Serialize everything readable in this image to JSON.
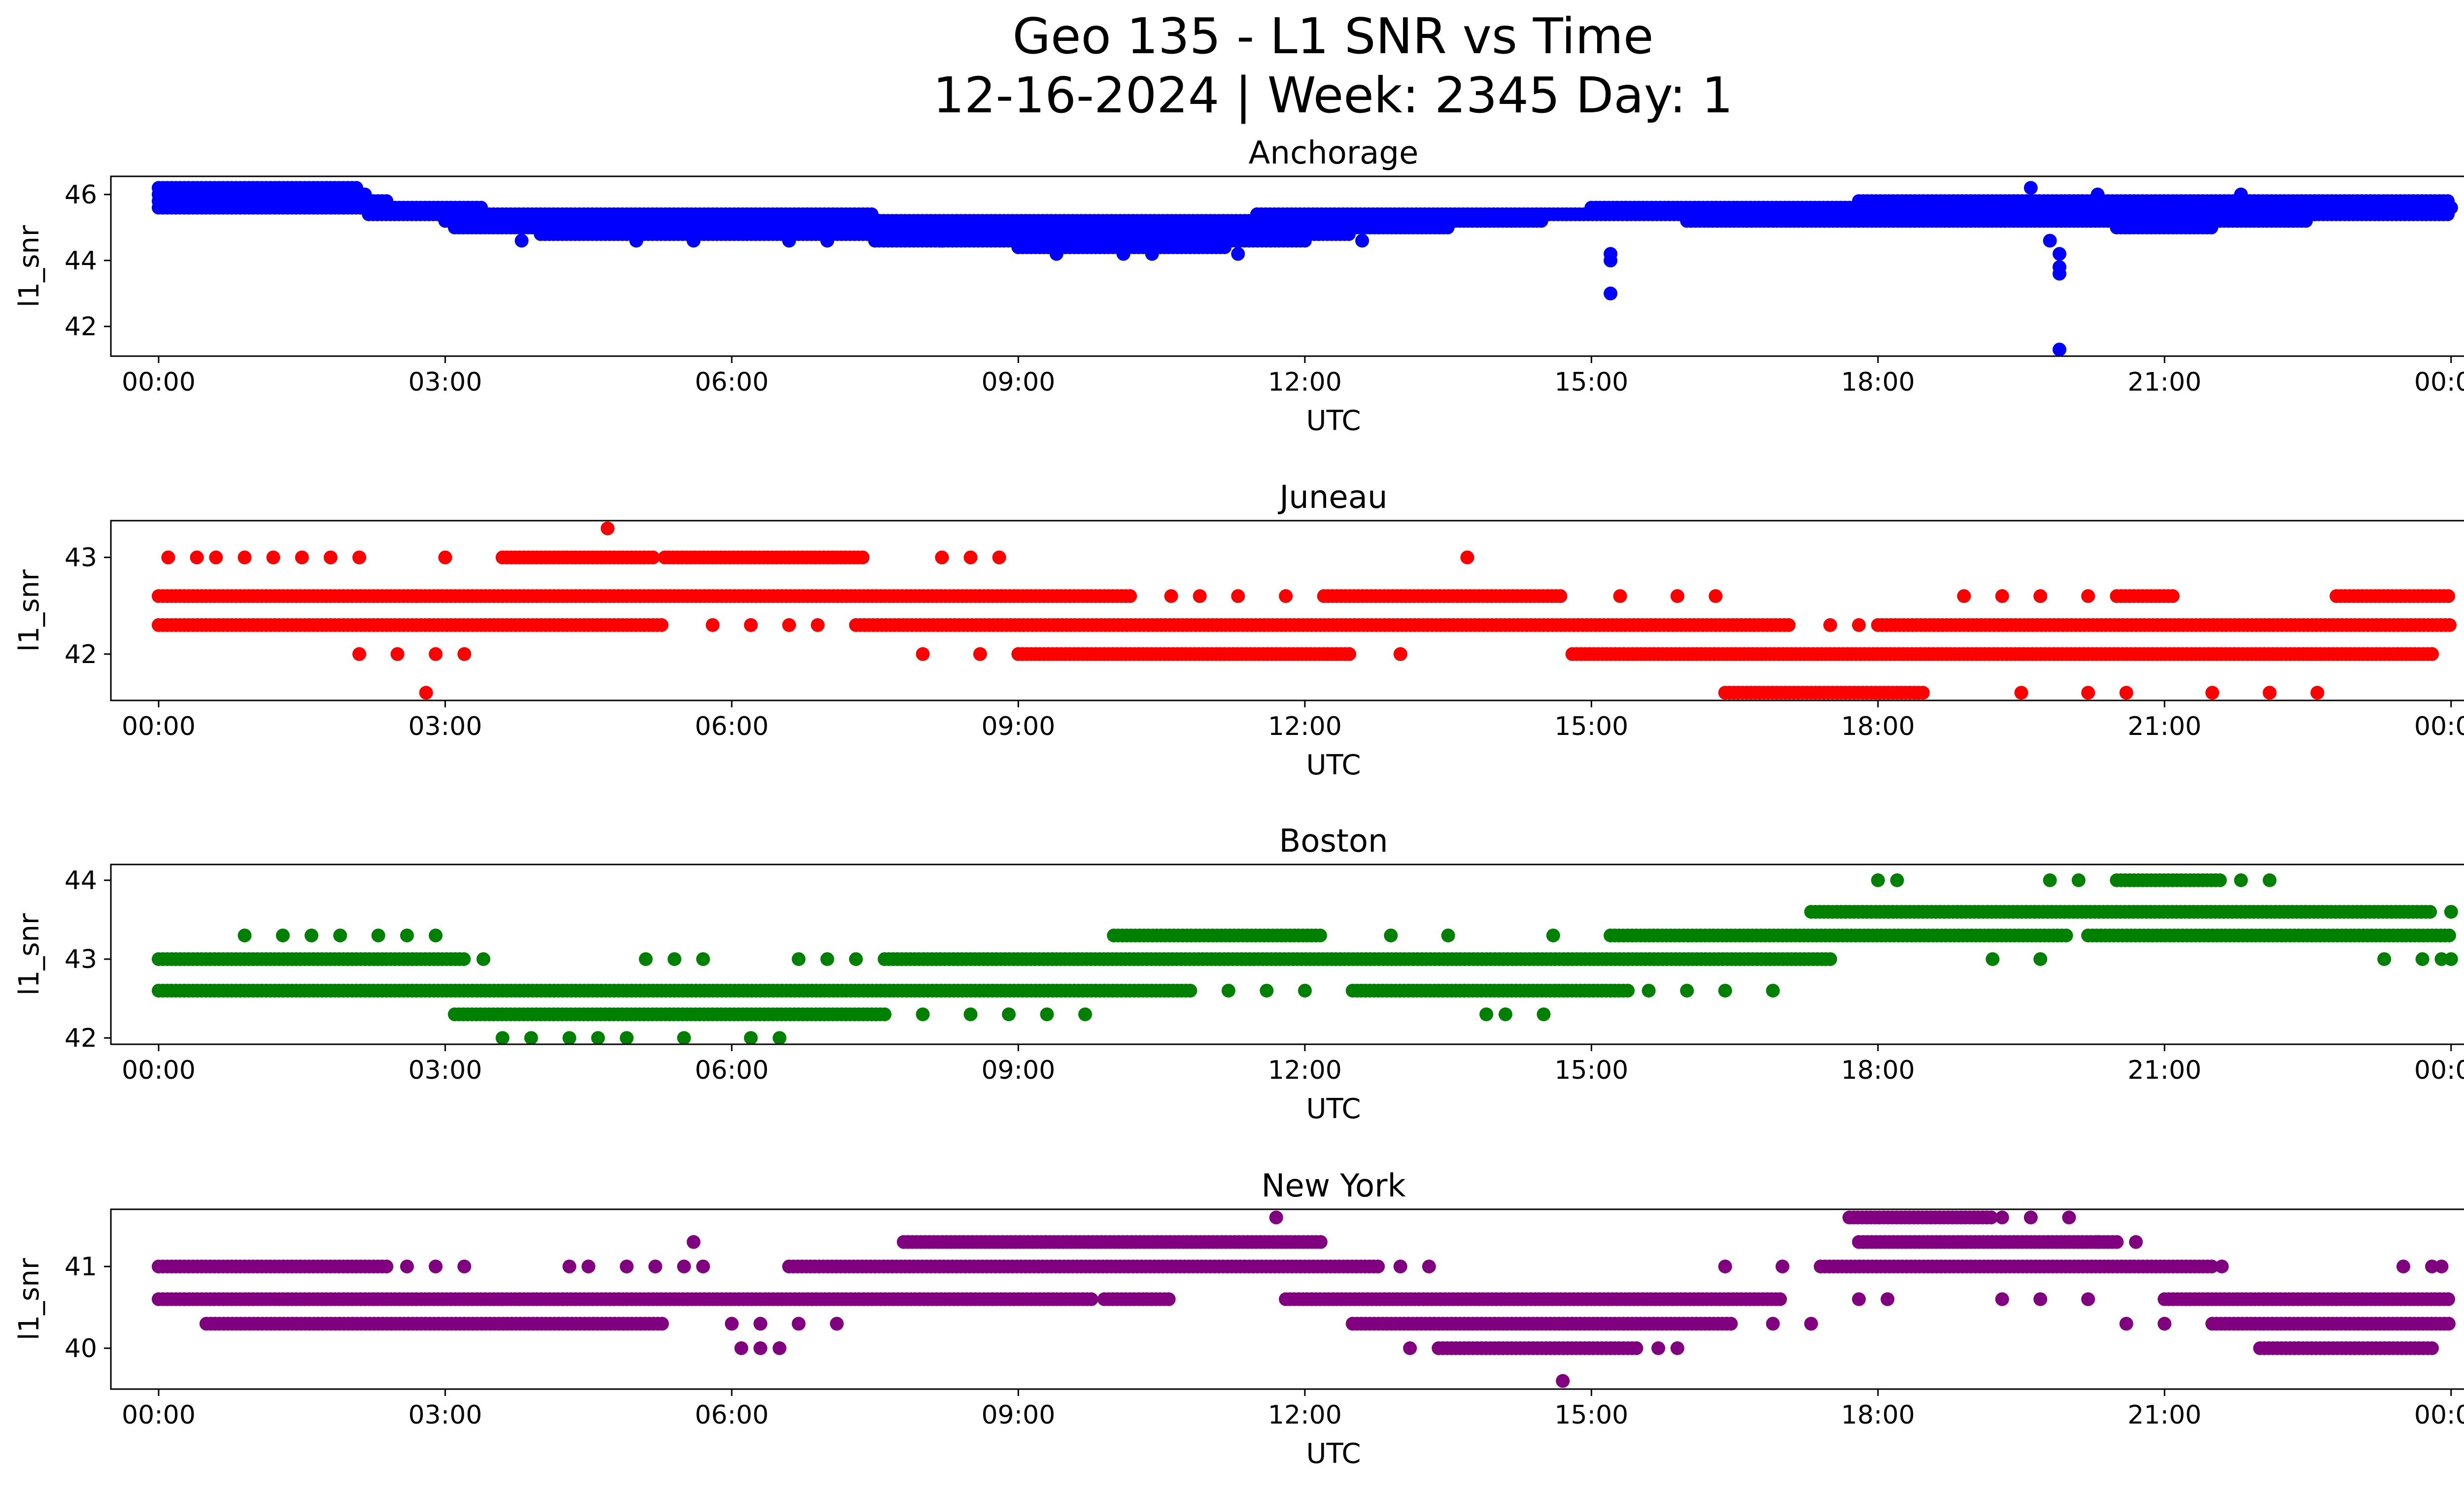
{
  "figure": {
    "title_line1": "Geo 135 - L1 SNR vs Time",
    "title_line2": "12-16-2024 | Week: 2345 Day: 1"
  },
  "chart_data": [
    {
      "type": "scatter",
      "title": "Anchorage",
      "xlabel": "UTC",
      "ylabel": "l1_snr",
      "color": "#0000ff",
      "xlim_hours": [
        -0.5,
        25.1
      ],
      "ylim": [
        41.1,
        46.55
      ],
      "yticks": [
        42,
        44,
        46
      ],
      "xticks": [
        "00:00",
        "03:00",
        "06:00",
        "09:00",
        "12:00",
        "15:00",
        "18:00",
        "21:00",
        "00:00"
      ],
      "bands": [
        {
          "y": 46.2,
          "ranges": [
            [
              0.0,
              2.1
            ]
          ]
        },
        {
          "y": 46.0,
          "ranges": [
            [
              0.0,
              2.2
            ]
          ]
        },
        {
          "y": 45.8,
          "ranges": [
            [
              0.0,
              2.4
            ],
            [
              17.8,
              24.0
            ]
          ]
        },
        {
          "y": 45.6,
          "ranges": [
            [
              0.0,
              3.4
            ],
            [
              15.0,
              24.0
            ]
          ]
        },
        {
          "y": 45.4,
          "ranges": [
            [
              2.2,
              7.5
            ],
            [
              11.5,
              24.0
            ]
          ]
        },
        {
          "y": 45.2,
          "ranges": [
            [
              3.0,
              14.5
            ],
            [
              16.0,
              22.5
            ]
          ]
        },
        {
          "y": 45.0,
          "ranges": [
            [
              3.1,
              13.5
            ],
            [
              20.5,
              21.5
            ]
          ]
        },
        {
          "y": 44.8,
          "ranges": [
            [
              4.0,
              12.5
            ]
          ]
        },
        {
          "y": 44.6,
          "ranges": [
            [
              7.5,
              12.0
            ]
          ]
        },
        {
          "y": 44.4,
          "ranges": [
            [
              9.0,
              11.2
            ]
          ]
        }
      ],
      "points": [
        {
          "x": 3.8,
          "y": 44.6
        },
        {
          "x": 5.0,
          "y": 44.6
        },
        {
          "x": 5.6,
          "y": 44.6
        },
        {
          "x": 6.6,
          "y": 44.6
        },
        {
          "x": 7.0,
          "y": 44.6
        },
        {
          "x": 8.2,
          "y": 44.6
        },
        {
          "x": 9.4,
          "y": 44.2
        },
        {
          "x": 10.1,
          "y": 44.2
        },
        {
          "x": 10.4,
          "y": 44.2
        },
        {
          "x": 11.3,
          "y": 44.2
        },
        {
          "x": 12.6,
          "y": 44.6
        },
        {
          "x": 15.2,
          "y": 44.2
        },
        {
          "x": 15.2,
          "y": 44.0
        },
        {
          "x": 15.2,
          "y": 43.0
        },
        {
          "x": 19.8,
          "y": 44.6
        },
        {
          "x": 19.9,
          "y": 44.2
        },
        {
          "x": 19.9,
          "y": 43.8
        },
        {
          "x": 19.9,
          "y": 43.6
        },
        {
          "x": 19.9,
          "y": 41.3
        },
        {
          "x": 20.3,
          "y": 46.0
        },
        {
          "x": 21.8,
          "y": 46.0
        },
        {
          "x": 19.6,
          "y": 46.2
        }
      ]
    },
    {
      "type": "scatter",
      "title": "Juneau",
      "xlabel": "UTC",
      "ylabel": "l1_snr",
      "color": "#ff0000",
      "xlim_hours": [
        -0.5,
        25.1
      ],
      "ylim": [
        41.52,
        43.38
      ],
      "yticks": [
        42,
        43
      ],
      "xticks": [
        "00:00",
        "03:00",
        "06:00",
        "09:00",
        "12:00",
        "15:00",
        "18:00",
        "21:00",
        "00:00"
      ],
      "bands": [
        {
          "y": 42.6,
          "ranges": [
            [
              0.0,
              10.2
            ],
            [
              12.2,
              14.7
            ],
            [
              20.5,
              21.1
            ],
            [
              22.8,
              24.0
            ]
          ]
        },
        {
          "y": 42.3,
          "ranges": [
            [
              0.0,
              5.3
            ],
            [
              7.3,
              17.1
            ],
            [
              18.0,
              24.0
            ]
          ]
        },
        {
          "y": 42.0,
          "ranges": [
            [
              9.0,
              12.5
            ],
            [
              14.8,
              23.8
            ]
          ]
        },
        {
          "y": 43.0,
          "ranges": [
            [
              3.6,
              5.2
            ],
            [
              5.3,
              7.4
            ]
          ]
        },
        {
          "y": 41.6,
          "ranges": [
            [
              16.4,
              18.5
            ]
          ]
        }
      ],
      "points": [
        {
          "x": 0.1,
          "y": 43.0
        },
        {
          "x": 0.4,
          "y": 43.0
        },
        {
          "x": 0.6,
          "y": 43.0
        },
        {
          "x": 0.9,
          "y": 43.0
        },
        {
          "x": 1.2,
          "y": 43.0
        },
        {
          "x": 1.5,
          "y": 43.0
        },
        {
          "x": 1.8,
          "y": 43.0
        },
        {
          "x": 2.1,
          "y": 43.0
        },
        {
          "x": 3.0,
          "y": 43.0
        },
        {
          "x": 4.7,
          "y": 43.3
        },
        {
          "x": 2.8,
          "y": 41.6
        },
        {
          "x": 2.1,
          "y": 42.0
        },
        {
          "x": 2.5,
          "y": 42.0
        },
        {
          "x": 2.9,
          "y": 42.0
        },
        {
          "x": 3.2,
          "y": 42.0
        },
        {
          "x": 2.7,
          "y": 42.6
        },
        {
          "x": 5.8,
          "y": 42.3
        },
        {
          "x": 6.2,
          "y": 42.3
        },
        {
          "x": 6.6,
          "y": 42.3
        },
        {
          "x": 6.9,
          "y": 42.3
        },
        {
          "x": 8.2,
          "y": 43.0
        },
        {
          "x": 8.5,
          "y": 43.0
        },
        {
          "x": 8.8,
          "y": 43.0
        },
        {
          "x": 8.0,
          "y": 42.0
        },
        {
          "x": 8.6,
          "y": 42.0
        },
        {
          "x": 10.6,
          "y": 42.6
        },
        {
          "x": 10.9,
          "y": 42.6
        },
        {
          "x": 11.3,
          "y": 42.6
        },
        {
          "x": 11.8,
          "y": 42.6
        },
        {
          "x": 13.0,
          "y": 42.0
        },
        {
          "x": 13.7,
          "y": 43.0
        },
        {
          "x": 15.3,
          "y": 42.6
        },
        {
          "x": 15.9,
          "y": 42.6
        },
        {
          "x": 16.3,
          "y": 42.6
        },
        {
          "x": 18.9,
          "y": 42.6
        },
        {
          "x": 19.3,
          "y": 42.6
        },
        {
          "x": 19.7,
          "y": 42.6
        },
        {
          "x": 20.2,
          "y": 42.6
        },
        {
          "x": 17.5,
          "y": 42.3
        },
        {
          "x": 17.8,
          "y": 42.3
        },
        {
          "x": 19.5,
          "y": 41.6
        },
        {
          "x": 20.2,
          "y": 41.6
        },
        {
          "x": 20.6,
          "y": 41.6
        },
        {
          "x": 21.5,
          "y": 41.6
        },
        {
          "x": 22.1,
          "y": 41.6
        },
        {
          "x": 22.6,
          "y": 41.6
        },
        {
          "x": 23.8,
          "y": 42.0
        }
      ]
    },
    {
      "type": "scatter",
      "title": "Boston",
      "xlabel": "UTC",
      "ylabel": "l1_snr",
      "color": "#008000",
      "xlim_hours": [
        -0.5,
        25.1
      ],
      "ylim": [
        41.92,
        44.2
      ],
      "yticks": [
        42,
        43,
        44
      ],
      "xticks": [
        "00:00",
        "03:00",
        "06:00",
        "09:00",
        "12:00",
        "15:00",
        "18:00",
        "21:00",
        "00:00"
      ],
      "bands": [
        {
          "y": 43.0,
          "ranges": [
            [
              0.0,
              3.2
            ],
            [
              7.6,
              17.5
            ]
          ]
        },
        {
          "y": 42.6,
          "ranges": [
            [
              0.0,
              10.8
            ],
            [
              12.5,
              15.4
            ]
          ]
        },
        {
          "y": 42.3,
          "ranges": [
            [
              3.1,
              7.6
            ]
          ]
        },
        {
          "y": 43.3,
          "ranges": [
            [
              10.0,
              12.2
            ],
            [
              15.2,
              20.0
            ],
            [
              20.2,
              24.0
            ]
          ]
        },
        {
          "y": 43.6,
          "ranges": [
            [
              17.3,
              23.8
            ]
          ]
        },
        {
          "y": 44.0,
          "ranges": [
            [
              20.5,
              21.6
            ]
          ]
        }
      ],
      "points": [
        {
          "x": 0.9,
          "y": 43.3
        },
        {
          "x": 1.3,
          "y": 43.3
        },
        {
          "x": 1.6,
          "y": 43.3
        },
        {
          "x": 1.9,
          "y": 43.3
        },
        {
          "x": 2.3,
          "y": 43.3
        },
        {
          "x": 2.6,
          "y": 43.3
        },
        {
          "x": 2.9,
          "y": 43.3
        },
        {
          "x": 3.4,
          "y": 43.0
        },
        {
          "x": 5.1,
          "y": 43.0
        },
        {
          "x": 5.4,
          "y": 43.0
        },
        {
          "x": 5.7,
          "y": 43.0
        },
        {
          "x": 6.7,
          "y": 43.0
        },
        {
          "x": 7.0,
          "y": 43.0
        },
        {
          "x": 7.3,
          "y": 43.0
        },
        {
          "x": 3.6,
          "y": 42.0
        },
        {
          "x": 3.9,
          "y": 42.0
        },
        {
          "x": 4.3,
          "y": 42.0
        },
        {
          "x": 4.6,
          "y": 42.0
        },
        {
          "x": 4.9,
          "y": 42.0
        },
        {
          "x": 5.5,
          "y": 42.0
        },
        {
          "x": 6.2,
          "y": 42.0
        },
        {
          "x": 6.5,
          "y": 42.0
        },
        {
          "x": 8.0,
          "y": 42.3
        },
        {
          "x": 8.5,
          "y": 42.3
        },
        {
          "x": 8.9,
          "y": 42.3
        },
        {
          "x": 9.3,
          "y": 42.3
        },
        {
          "x": 9.7,
          "y": 42.3
        },
        {
          "x": 11.2,
          "y": 42.6
        },
        {
          "x": 11.6,
          "y": 42.6
        },
        {
          "x": 12.0,
          "y": 42.6
        },
        {
          "x": 12.9,
          "y": 43.3
        },
        {
          "x": 13.5,
          "y": 43.3
        },
        {
          "x": 13.9,
          "y": 42.3
        },
        {
          "x": 14.1,
          "y": 42.3
        },
        {
          "x": 14.5,
          "y": 42.3
        },
        {
          "x": 14.6,
          "y": 43.3
        },
        {
          "x": 15.6,
          "y": 42.6
        },
        {
          "x": 16.0,
          "y": 42.6
        },
        {
          "x": 16.4,
          "y": 42.6
        },
        {
          "x": 16.9,
          "y": 42.6
        },
        {
          "x": 18.0,
          "y": 44.0
        },
        {
          "x": 18.2,
          "y": 44.0
        },
        {
          "x": 19.2,
          "y": 43.0
        },
        {
          "x": 19.7,
          "y": 43.0
        },
        {
          "x": 19.8,
          "y": 44.0
        },
        {
          "x": 20.1,
          "y": 44.0
        },
        {
          "x": 21.8,
          "y": 44.0
        },
        {
          "x": 22.1,
          "y": 44.0
        },
        {
          "x": 23.3,
          "y": 43.0
        },
        {
          "x": 23.7,
          "y": 43.0
        },
        {
          "x": 24.0,
          "y": 43.6
        },
        {
          "x": 23.9,
          "y": 43.0
        },
        {
          "x": 24.0,
          "y": 43.0
        }
      ]
    },
    {
      "type": "scatter",
      "title": "New York",
      "xlabel": "UTC",
      "ylabel": "l1_snr",
      "color": "#800080",
      "xlim_hours": [
        -0.5,
        25.1
      ],
      "ylim": [
        39.5,
        41.7
      ],
      "yticks": [
        40,
        41
      ],
      "xticks": [
        "00:00",
        "03:00",
        "06:00",
        "09:00",
        "12:00",
        "15:00",
        "18:00",
        "21:00",
        "00:00"
      ],
      "bands": [
        {
          "y": 41.0,
          "ranges": [
            [
              0.0,
              2.4
            ],
            [
              6.6,
              12.8
            ],
            [
              17.4,
              21.5
            ]
          ]
        },
        {
          "y": 40.6,
          "ranges": [
            [
              0.0,
              9.8
            ],
            [
              9.9,
              10.6
            ],
            [
              11.8,
              17.0
            ],
            [
              21.0,
              24.0
            ]
          ]
        },
        {
          "y": 40.3,
          "ranges": [
            [
              0.5,
              5.3
            ],
            [
              12.5,
              16.5
            ],
            [
              21.5,
              24.0
            ]
          ]
        },
        {
          "y": 41.3,
          "ranges": [
            [
              7.8,
              12.2
            ],
            [
              17.8,
              20.5
            ]
          ]
        },
        {
          "y": 40.0,
          "ranges": [
            [
              13.4,
              15.5
            ],
            [
              22.0,
              23.8
            ]
          ]
        },
        {
          "y": 41.6,
          "ranges": [
            [
              17.7,
              19.2
            ]
          ]
        }
      ],
      "points": [
        {
          "x": 2.6,
          "y": 41.0
        },
        {
          "x": 2.9,
          "y": 41.0
        },
        {
          "x": 3.2,
          "y": 41.0
        },
        {
          "x": 4.3,
          "y": 41.0
        },
        {
          "x": 4.5,
          "y": 41.0
        },
        {
          "x": 4.9,
          "y": 41.0
        },
        {
          "x": 5.2,
          "y": 41.0
        },
        {
          "x": 5.5,
          "y": 41.0
        },
        {
          "x": 5.7,
          "y": 41.0
        },
        {
          "x": 5.6,
          "y": 41.3
        },
        {
          "x": 6.0,
          "y": 40.3
        },
        {
          "x": 6.3,
          "y": 40.3
        },
        {
          "x": 6.7,
          "y": 40.3
        },
        {
          "x": 7.1,
          "y": 40.3
        },
        {
          "x": 6.1,
          "y": 40.0
        },
        {
          "x": 6.3,
          "y": 40.0
        },
        {
          "x": 6.5,
          "y": 40.0
        },
        {
          "x": 11.7,
          "y": 41.6
        },
        {
          "x": 13.0,
          "y": 41.0
        },
        {
          "x": 13.3,
          "y": 41.0
        },
        {
          "x": 13.1,
          "y": 40.0
        },
        {
          "x": 14.7,
          "y": 39.6
        },
        {
          "x": 15.7,
          "y": 40.0
        },
        {
          "x": 15.9,
          "y": 40.0
        },
        {
          "x": 16.4,
          "y": 41.0
        },
        {
          "x": 17.0,
          "y": 41.0
        },
        {
          "x": 16.9,
          "y": 40.3
        },
        {
          "x": 17.3,
          "y": 40.3
        },
        {
          "x": 17.8,
          "y": 40.6
        },
        {
          "x": 18.1,
          "y": 40.6
        },
        {
          "x": 19.3,
          "y": 41.6
        },
        {
          "x": 19.6,
          "y": 41.6
        },
        {
          "x": 20.0,
          "y": 41.6
        },
        {
          "x": 20.3,
          "y": 41.3
        },
        {
          "x": 20.7,
          "y": 41.3
        },
        {
          "x": 21.6,
          "y": 41.0
        },
        {
          "x": 19.3,
          "y": 40.6
        },
        {
          "x": 19.7,
          "y": 40.6
        },
        {
          "x": 20.2,
          "y": 40.6
        },
        {
          "x": 20.6,
          "y": 40.3
        },
        {
          "x": 21.0,
          "y": 40.3
        },
        {
          "x": 23.5,
          "y": 41.0
        },
        {
          "x": 23.8,
          "y": 41.0
        },
        {
          "x": 23.9,
          "y": 41.0
        }
      ]
    }
  ]
}
